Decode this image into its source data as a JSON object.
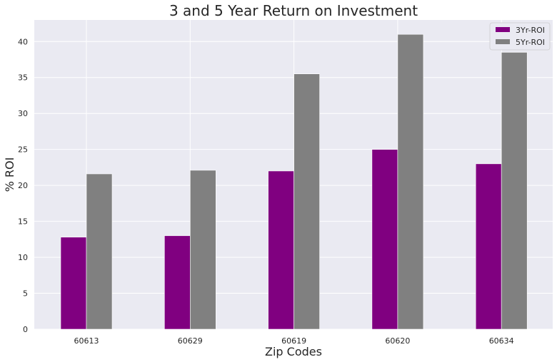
{
  "chart_data": {
    "type": "bar",
    "title": "3 and 5 Year Return on Investment",
    "xlabel": "Zip Codes",
    "ylabel": "% ROI",
    "categories": [
      "60613",
      "60629",
      "60619",
      "60620",
      "60634"
    ],
    "series": [
      {
        "name": "3Yr-ROI",
        "color": "#800080",
        "values": [
          12.8,
          13.0,
          22.0,
          25.0,
          23.0
        ]
      },
      {
        "name": "5Yr-ROI",
        "color": "#808080",
        "values": [
          21.6,
          22.1,
          35.5,
          41.0,
          38.5
        ]
      }
    ],
    "ylim": [
      0,
      43
    ],
    "yticks": [
      0,
      5,
      10,
      15,
      20,
      25,
      30,
      35,
      40
    ],
    "grid": true,
    "background": "#eaeaf2",
    "legend_position": "top-right"
  }
}
